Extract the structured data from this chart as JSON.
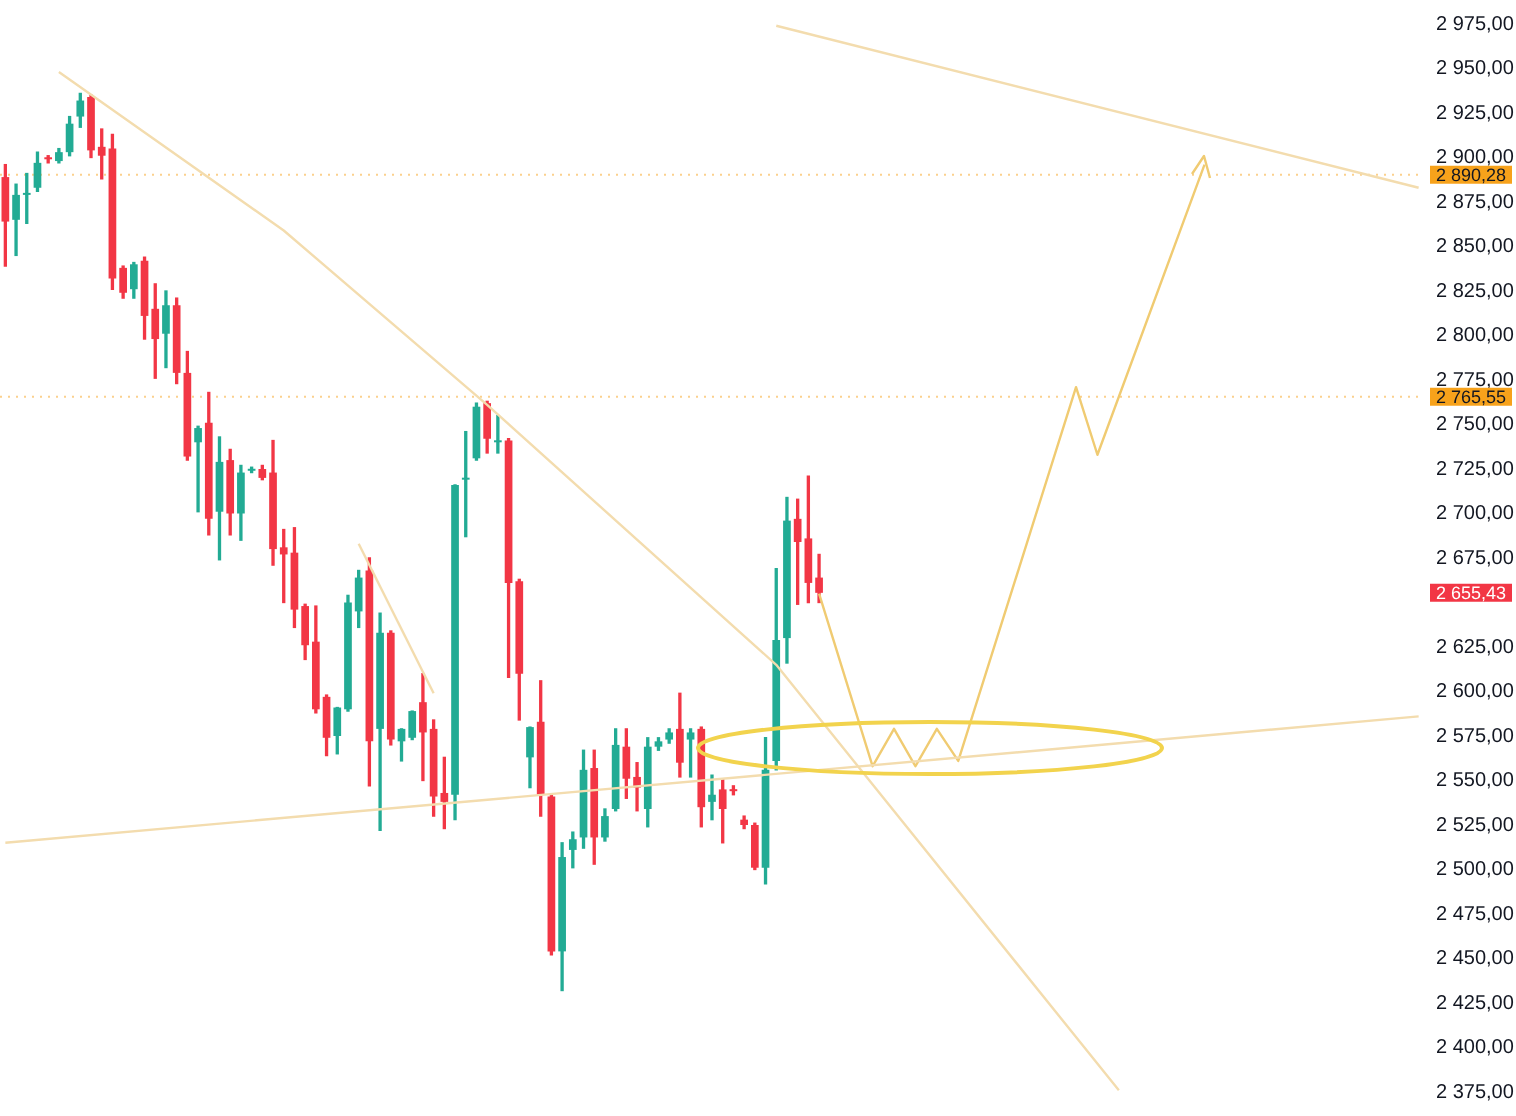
{
  "chart_data": {
    "type": "candlestick",
    "categories": [
      null,
      null,
      null,
      null,
      null,
      null,
      null,
      null,
      null,
      null,
      null,
      null,
      null,
      null,
      null,
      null,
      null,
      null,
      null,
      null,
      null,
      null,
      null,
      null,
      null,
      null,
      null,
      null,
      null,
      null,
      null,
      null,
      null,
      null,
      null,
      null,
      null,
      null,
      null,
      null,
      null,
      null,
      null,
      null,
      null,
      null,
      null,
      null,
      null,
      null,
      null,
      null,
      null,
      null,
      null,
      null,
      null,
      null,
      null,
      null,
      null,
      null,
      null,
      null,
      null,
      null,
      null,
      null,
      null,
      null,
      null,
      null,
      null,
      null,
      null,
      null,
      null,
      null,
      null,
      null,
      null,
      null,
      null,
      null,
      null,
      null,
      null,
      null,
      null,
      null,
      null,
      null,
      null,
      null,
      null,
      null,
      null,
      null,
      null,
      null,
      null,
      null,
      null,
      null,
      null,
      null,
      null,
      null,
      null,
      null,
      null,
      null,
      null,
      null,
      null,
      null,
      null,
      null,
      null,
      null,
      null,
      null,
      null,
      null,
      null,
      null,
      null,
      null,
      null,
      null,
      null,
      null,
      null
    ],
    "ohlc": [
      [
        2889,
        2896,
        2839,
        2864
      ],
      [
        2865,
        2885,
        2845,
        2879
      ],
      [
        2879,
        2891,
        2863,
        2880
      ],
      [
        2883,
        2903,
        2881,
        2897
      ],
      [
        2900,
        2901,
        2897,
        2899
      ],
      [
        2898,
        2905,
        2897,
        2903
      ],
      [
        2903,
        2923,
        2901,
        2919
      ],
      [
        2923,
        2936,
        2917,
        2932
      ],
      [
        2934,
        2935,
        2900,
        2904
      ],
      [
        2906,
        2916,
        2888,
        2901
      ],
      [
        2905,
        2913,
        2826,
        2832
      ],
      [
        2838,
        2839,
        2821,
        2824
      ],
      [
        2826,
        2841,
        2821,
        2840
      ],
      [
        2842,
        2844,
        2798,
        2811
      ],
      [
        2815,
        2829,
        2776,
        2798
      ],
      [
        2801,
        2825,
        2782,
        2817
      ],
      [
        2817,
        2821,
        2773,
        2779
      ],
      [
        2779,
        2791,
        2730,
        2732
      ],
      [
        2740,
        2749,
        2701,
        2748
      ],
      [
        2751,
        2768,
        2688,
        2697
      ],
      [
        2701,
        2743,
        2674,
        2729
      ],
      [
        2730,
        2736,
        2688,
        2700
      ],
      [
        2700,
        2727,
        2685,
        2723
      ],
      [
        2724,
        2726,
        2723,
        2725
      ],
      [
        2725,
        2727,
        2719,
        2720
      ],
      [
        2723,
        2741,
        2671,
        2680
      ],
      [
        2681,
        2691,
        2650,
        2677
      ],
      [
        2678,
        2692,
        2636,
        2646
      ],
      [
        2648,
        2649,
        2618,
        2626
      ],
      [
        2628,
        2648,
        2588,
        2590
      ],
      [
        2597,
        2598,
        2564,
        2574
      ],
      [
        2575,
        2591,
        2565,
        2591
      ],
      [
        2590,
        2654,
        2589,
        2650
      ],
      [
        2645,
        2668,
        2636,
        2664
      ],
      [
        2668,
        2675,
        2547,
        2572
      ],
      [
        2579,
        2644,
        2522,
        2633
      ],
      [
        2633,
        2634,
        2570,
        2573
      ],
      [
        2572,
        2579,
        2561,
        2579
      ],
      [
        2574,
        2589,
        2573,
        2589
      ],
      [
        2594,
        2610,
        2550,
        2577
      ],
      [
        2579,
        2584,
        2530,
        2541
      ],
      [
        2543,
        2563,
        2523,
        2538
      ],
      [
        2542,
        2716,
        2528,
        2716
      ],
      [
        2719,
        2746,
        2687,
        2720
      ],
      [
        2731,
        2762,
        2730,
        2760
      ],
      [
        2762,
        2763,
        2734,
        2742
      ],
      [
        2740,
        2755,
        2734,
        2741
      ],
      [
        2741,
        2742,
        2608,
        2661
      ],
      [
        2662,
        2663,
        2584,
        2610
      ],
      [
        2563,
        2580,
        2546,
        2580
      ],
      [
        2583,
        2606,
        2530,
        2542
      ],
      [
        2541,
        2542,
        2452,
        2454
      ],
      [
        2454,
        2515,
        2432,
        2507
      ],
      [
        2511,
        2521,
        2501,
        2517
      ],
      [
        2518,
        2567,
        2512,
        2556
      ],
      [
        2557,
        2567,
        2503,
        2518
      ],
      [
        2518,
        2534,
        2516,
        2530
      ],
      [
        2534,
        2579,
        2533,
        2570
      ],
      [
        2569,
        2579,
        2540,
        2551
      ],
      [
        2552,
        2560,
        2533,
        2546
      ],
      [
        2534,
        2574,
        2524,
        2569
      ],
      [
        2569,
        2574,
        2567,
        2572
      ],
      [
        2573,
        2579,
        2571,
        2577
      ],
      [
        2579,
        2599,
        2552,
        2560
      ],
      [
        2573,
        2579,
        2552,
        2577
      ],
      [
        2579,
        2580,
        2524,
        2535
      ],
      [
        2538,
        2553,
        2528,
        2542
      ],
      [
        2545,
        2551,
        2515,
        2534
      ],
      [
        2544,
        2547,
        2542,
        2544
      ],
      [
        2528,
        2530,
        2523,
        2525
      ],
      [
        2525,
        2526,
        2500,
        2501
      ],
      [
        2501,
        2574,
        2492,
        2556
      ],
      [
        2561,
        2669,
        2556,
        2629
      ],
      [
        2630,
        2709,
        2616,
        2696
      ],
      [
        2697,
        2708,
        2649,
        2684
      ],
      [
        2686,
        2721,
        2650,
        2661
      ],
      [
        2664,
        2677,
        2650,
        2655.43
      ],
      null,
      null,
      null,
      null,
      null,
      null,
      null,
      null,
      null,
      null,
      null,
      null,
      null,
      null,
      null,
      null,
      null,
      null,
      null,
      null,
      null,
      null,
      null,
      null,
      null,
      null,
      null,
      null,
      null,
      null,
      null,
      null,
      null,
      null,
      null,
      null,
      null,
      null,
      null,
      null,
      null,
      null,
      null,
      null,
      null,
      null,
      null,
      null,
      null,
      null,
      null,
      null,
      null,
      null,
      null,
      null
    ],
    "colors": [
      "#f23645",
      "#22ab94",
      "#22ab94",
      "#22ab94",
      "#f23645",
      "#22ab94",
      "#22ab94",
      "#22ab94",
      "#f23645",
      "#f23645",
      "#f23645",
      "#f23645",
      "#22ab94",
      "#f23645",
      "#f23645",
      "#22ab94",
      "#f23645",
      "#f23645",
      "#22ab94",
      "#f23645",
      "#22ab94",
      "#f23645",
      "#22ab94",
      "#22ab94",
      "#f23645",
      "#f23645",
      "#f23645",
      "#f23645",
      "#f23645",
      "#f23645",
      "#f23645",
      "#22ab94",
      "#22ab94",
      "#22ab94",
      "#f23645",
      "#22ab94",
      "#f23645",
      "#22ab94",
      "#22ab94",
      "#f23645",
      "#f23645",
      "#f23645",
      "#22ab94",
      "#22ab94",
      "#22ab94",
      "#f23645",
      "#22ab94",
      "#f23645",
      "#f23645",
      "#22ab94",
      "#f23645",
      "#f23645",
      "#22ab94",
      "#22ab94",
      "#22ab94",
      "#f23645",
      "#22ab94",
      "#22ab94",
      "#f23645",
      "#f23645",
      "#22ab94",
      "#22ab94",
      "#22ab94",
      "#f23645",
      "#22ab94",
      "#f23645",
      "#22ab94",
      "#f23645",
      "#f23645",
      "#f23645",
      "#f23645",
      "#22ab94",
      "#22ab94",
      "#22ab94",
      "#f23645",
      "#f23645",
      "#f23645",
      null,
      null,
      null,
      null,
      null,
      null,
      null,
      null,
      null,
      null,
      null,
      null,
      null,
      null,
      null,
      null,
      null,
      null,
      null,
      null,
      null,
      null,
      null,
      null,
      null,
      null,
      null,
      null,
      null,
      null,
      null,
      null,
      null,
      null,
      null,
      null,
      null,
      null,
      null,
      null,
      null,
      null,
      null,
      null,
      null,
      null,
      null,
      null,
      null,
      null,
      null,
      null,
      null,
      null,
      null,
      null
    ],
    "series": [
      {
        "type": "line",
        "color": "#f3dcae",
        "values": [
          null,
          null,
          null,
          null,
          null,
          2948,
          null,
          null,
          null,
          null,
          null,
          null,
          null,
          null,
          null,
          null,
          null,
          null,
          null,
          null,
          null,
          null,
          null,
          null,
          null,
          null,
          2859,
          null,
          null,
          null,
          null,
          null,
          null,
          null,
          null,
          null,
          null,
          null,
          null,
          null,
          null,
          null,
          null,
          null,
          null,
          2761,
          null,
          null,
          null,
          null,
          null,
          null,
          null,
          null,
          null,
          null,
          null,
          null,
          null,
          null,
          null,
          null,
          null,
          null,
          null,
          null,
          null,
          null,
          null,
          null,
          null,
          null,
          2615,
          null,
          null,
          null,
          null,
          null,
          null,
          null,
          null,
          null,
          null,
          null,
          null,
          null,
          null,
          null,
          null,
          null,
          null,
          null,
          null,
          null,
          null,
          null,
          null,
          null,
          null,
          null,
          null,
          null,
          null,
          null,
          2376,
          null,
          null,
          null,
          null,
          null,
          null,
          null,
          null,
          null,
          null,
          null,
          null,
          null,
          null,
          null,
          null,
          null,
          null,
          null,
          null,
          null,
          null,
          null,
          null,
          null,
          null,
          null,
          null
        ]
      },
      {
        "type": "line",
        "color": "#f3dcae",
        "values": [
          null,
          null,
          null,
          null,
          null,
          null,
          null,
          null,
          null,
          null,
          null,
          null,
          null,
          null,
          null,
          null,
          null,
          null,
          null,
          null,
          null,
          null,
          null,
          null,
          null,
          null,
          null,
          null,
          null,
          null,
          null,
          null,
          null,
          2683,
          null,
          null,
          null,
          null,
          null,
          null,
          2599,
          null,
          null,
          null,
          null,
          null,
          null,
          null,
          null,
          null,
          null,
          null,
          null,
          null,
          null,
          null,
          null,
          null,
          null,
          null,
          null,
          null,
          null,
          null,
          null,
          null,
          null,
          null,
          null,
          null,
          null,
          null,
          null,
          null,
          null,
          null,
          null,
          null,
          null,
          null,
          null,
          null,
          null,
          null,
          null,
          null,
          null,
          null,
          null,
          null,
          null,
          null,
          null,
          null,
          null,
          null,
          null,
          null,
          null,
          null,
          null,
          null,
          null,
          null,
          null,
          null,
          null,
          null,
          null,
          null,
          null,
          null,
          null,
          null,
          null,
          null,
          null,
          null,
          null,
          null,
          null,
          null,
          null,
          null,
          null,
          null,
          null,
          null,
          null,
          null,
          null,
          null,
          null
        ]
      },
      {
        "type": "line",
        "color": "#f3dcae",
        "values": [
          null,
          null,
          null,
          null,
          null,
          null,
          null,
          null,
          null,
          null,
          null,
          null,
          null,
          null,
          null,
          null,
          null,
          null,
          null,
          null,
          null,
          null,
          null,
          null,
          null,
          null,
          null,
          null,
          null,
          null,
          null,
          null,
          null,
          null,
          null,
          null,
          null,
          null,
          null,
          null,
          null,
          null,
          null,
          null,
          null,
          null,
          null,
          null,
          null,
          null,
          null,
          null,
          null,
          null,
          null,
          null,
          null,
          null,
          null,
          null,
          null,
          null,
          null,
          null,
          null,
          null,
          null,
          null,
          null,
          null,
          null,
          null,
          2974,
          null,
          null,
          null,
          null,
          null,
          null,
          null,
          null,
          null,
          null,
          null,
          null,
          null,
          null,
          null,
          null,
          null,
          null,
          null,
          null,
          null,
          null,
          null,
          null,
          null,
          null,
          null,
          null,
          null,
          null,
          null,
          null,
          null,
          null,
          null,
          null,
          null,
          null,
          null,
          null,
          null,
          null,
          null,
          null,
          null,
          null,
          null,
          null,
          null,
          null,
          null,
          null,
          null,
          null,
          null,
          null,
          null,
          null,
          null,
          2883
        ]
      },
      {
        "type": "line",
        "color": "#f3dcae",
        "values": [
          2515,
          null,
          null,
          null,
          null,
          null,
          null,
          null,
          null,
          null,
          null,
          null,
          null,
          null,
          null,
          null,
          null,
          null,
          null,
          null,
          null,
          null,
          null,
          null,
          null,
          null,
          null,
          null,
          null,
          null,
          null,
          null,
          null,
          null,
          null,
          null,
          null,
          null,
          null,
          null,
          null,
          null,
          null,
          null,
          null,
          null,
          null,
          null,
          null,
          null,
          null,
          null,
          null,
          null,
          null,
          null,
          null,
          null,
          null,
          null,
          null,
          null,
          null,
          null,
          null,
          null,
          null,
          null,
          null,
          null,
          null,
          null,
          null,
          null,
          null,
          null,
          null,
          null,
          null,
          null,
          null,
          null,
          null,
          null,
          null,
          null,
          null,
          null,
          null,
          null,
          null,
          null,
          null,
          null,
          null,
          null,
          null,
          null,
          null,
          null,
          null,
          null,
          null,
          null,
          null,
          null,
          null,
          null,
          null,
          null,
          null,
          null,
          null,
          null,
          null,
          null,
          null,
          null,
          null,
          null,
          null,
          null,
          null,
          null,
          null,
          null,
          null,
          null,
          null,
          null,
          null,
          null,
          2586
        ]
      },
      {
        "type": "line",
        "color": "#f0cb72",
        "values": [
          null,
          null,
          null,
          null,
          null,
          null,
          null,
          null,
          null,
          null,
          null,
          null,
          null,
          null,
          null,
          null,
          null,
          null,
          null,
          null,
          null,
          null,
          null,
          null,
          null,
          null,
          null,
          null,
          null,
          null,
          null,
          null,
          null,
          null,
          null,
          null,
          null,
          null,
          null,
          null,
          null,
          null,
          null,
          null,
          null,
          null,
          null,
          null,
          null,
          null,
          null,
          null,
          null,
          null,
          null,
          null,
          null,
          null,
          null,
          null,
          null,
          null,
          null,
          null,
          null,
          null,
          null,
          null,
          null,
          null,
          null,
          null,
          null,
          null,
          null,
          null,
          2655,
          null,
          null,
          null,
          null,
          2558,
          null,
          2579,
          null,
          2558,
          null,
          2579,
          null,
          2561,
          null,
          null,
          null,
          null,
          null,
          null,
          null,
          null,
          null,
          null,
          2771,
          null,
          2733,
          null,
          null,
          null,
          null,
          null,
          null,
          null,
          null,
          null,
          2896,
          null,
          null,
          null,
          null,
          null,
          null,
          null,
          null,
          null,
          null,
          null,
          null,
          null,
          null,
          null,
          null,
          null,
          null,
          null,
          null
        ]
      }
    ],
    "marker": "none",
    "ylim": [
      2375,
      2975
    ],
    "yticks": [
      {
        "value": 2375,
        "label": "2 375,00"
      },
      {
        "value": 2400,
        "label": "2 400,00"
      },
      {
        "value": 2425,
        "label": "2 425,00"
      },
      {
        "value": 2450,
        "label": "2 450,00"
      },
      {
        "value": 2475,
        "label": "2 475,00"
      },
      {
        "value": 2500,
        "label": "2 500,00"
      },
      {
        "value": 2525,
        "label": "2 525,00"
      },
      {
        "value": 2550,
        "label": "2 550,00"
      },
      {
        "value": 2575,
        "label": "2 575,00"
      },
      {
        "value": 2600,
        "label": "2 600,00"
      },
      {
        "value": 2625,
        "label": "2 625,00"
      },
      {
        "value": 2675,
        "label": "2 675,00"
      },
      {
        "value": 2700,
        "label": "2 700,00"
      },
      {
        "value": 2725,
        "label": "2 725,00"
      },
      {
        "value": 2750,
        "label": "2 750,00"
      },
      {
        "value": 2775,
        "label": "2 775,00"
      },
      {
        "value": 2800,
        "label": "2 800,00"
      },
      {
        "value": 2825,
        "label": "2 825,00"
      },
      {
        "value": 2850,
        "label": "2 850,00"
      },
      {
        "value": 2875,
        "label": "2 875,00"
      },
      {
        "value": 2900,
        "label": "2 900,00"
      },
      {
        "value": 2925,
        "label": "2 925,00"
      },
      {
        "value": 2950,
        "label": "2 950,00"
      },
      {
        "value": 2975,
        "label": "2 975,00"
      }
    ],
    "tick_labels": "y",
    "ref_lines": [
      {
        "axis": "y",
        "value": 2890.28,
        "label": "2 890,28",
        "color": "#f7a21b",
        "line_style": "dotted"
      },
      {
        "axis": "y",
        "value": 2765.55,
        "label": "2 765,55",
        "color": "#f7a21b",
        "line_style": "dotted"
      }
    ],
    "annotations": [
      "2 655,43"
    ]
  }
}
